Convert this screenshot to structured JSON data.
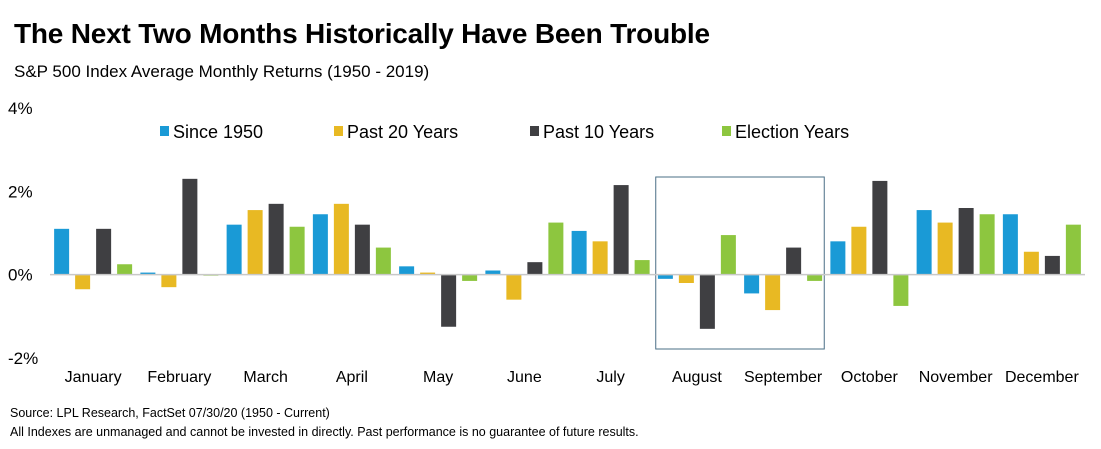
{
  "title": "The Next Two Months Historically Have Been Trouble",
  "subtitle": "S&P 500 Index Average Monthly Returns (1950 - 2019)",
  "footer": {
    "source": "Source: LPL Research, FactSet 07/30/20 (1950 - Current)",
    "disclaimer": "All Indexes are unmanaged and cannot be invested in directly. Past performance is no guarantee of future results."
  },
  "colors": {
    "since_1950": "#1a9ad6",
    "past_20": "#e8b923",
    "past_10": "#3f3f42",
    "election": "#8dc63f",
    "axis": "#c8c8c8",
    "highlight_box": "#4a6f86"
  },
  "chart_data": {
    "type": "bar",
    "title": "The Next Two Months Historically Have Been Trouble",
    "subtitle": "S&P 500 Index Average Monthly Returns (1950 - 2019)",
    "categories": [
      "January",
      "February",
      "March",
      "April",
      "May",
      "June",
      "July",
      "August",
      "September",
      "October",
      "November",
      "December"
    ],
    "series": [
      {
        "name": "Since 1950",
        "color": "#1a9ad6",
        "values": [
          1.1,
          0.05,
          1.2,
          1.45,
          0.2,
          0.1,
          1.05,
          -0.1,
          -0.45,
          0.8,
          1.55,
          1.45
        ]
      },
      {
        "name": "Past 20 Years",
        "color": "#e8b923",
        "values": [
          -0.35,
          -0.3,
          1.55,
          1.7,
          0.05,
          -0.6,
          0.8,
          -0.2,
          -0.85,
          1.15,
          1.25,
          0.55
        ]
      },
      {
        "name": "Past 10 Years",
        "color": "#3f3f42",
        "values": [
          1.1,
          2.3,
          1.7,
          1.2,
          -1.25,
          0.3,
          2.15,
          -1.3,
          0.65,
          2.25,
          1.6,
          0.45
        ]
      },
      {
        "name": "Election Years",
        "color": "#8dc63f",
        "values": [
          0.25,
          0.0,
          1.15,
          0.65,
          -0.15,
          1.25,
          0.35,
          0.95,
          -0.15,
          -0.75,
          1.45,
          1.2
        ]
      }
    ],
    "yticks": [
      "4%",
      "2%",
      "0%",
      "-2%"
    ],
    "ytick_values": [
      4,
      2,
      0,
      -2
    ],
    "ylim": [
      -2,
      4
    ],
    "legend_position": "top",
    "highlighted_categories": [
      "August",
      "September"
    ],
    "grid": false
  }
}
